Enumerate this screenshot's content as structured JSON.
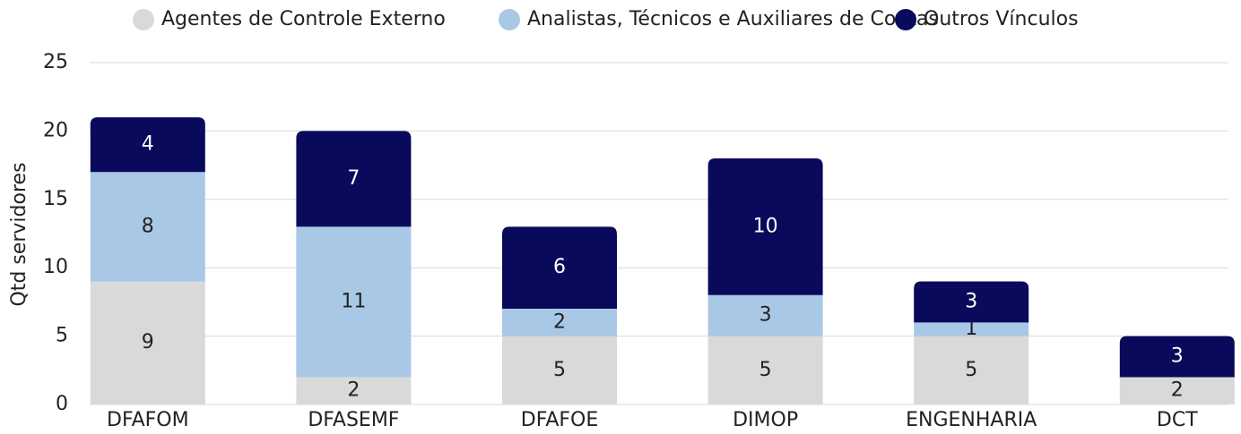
{
  "chart_data": {
    "type": "stacked_bar",
    "y_label": "Qtd servidores",
    "categories": [
      "DFAFOM",
      "DFASEMF",
      "DFAFOE",
      "DIMOP",
      "ENGENHARIA",
      "DCT"
    ],
    "series": [
      {
        "name": "Agentes de Controle Externo",
        "color": "#d9d9d9",
        "values": [
          9,
          2,
          5,
          5,
          5,
          2
        ]
      },
      {
        "name": "Analistas, Técnicos e Auxiliares de Contas",
        "color": "#a9c8e6",
        "values": [
          8,
          11,
          2,
          3,
          1,
          0
        ]
      },
      {
        "name": "Outros Vínculos",
        "color": "#0a0a5c",
        "values": [
          4,
          7,
          6,
          10,
          3,
          3
        ]
      }
    ],
    "ylim": [
      0,
      25
    ],
    "yticks": [
      0,
      5,
      10,
      15,
      20,
      25
    ],
    "grid": true
  }
}
